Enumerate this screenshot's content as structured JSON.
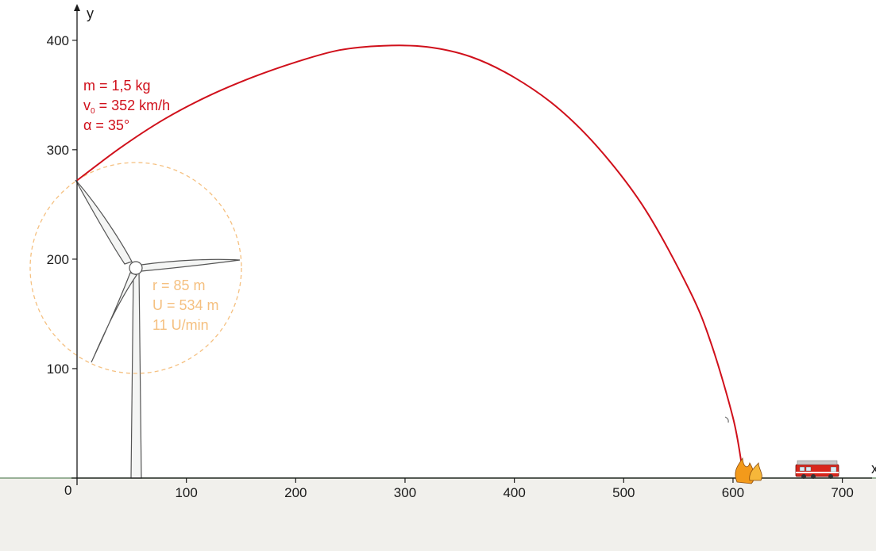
{
  "axes": {
    "x_label": "x",
    "y_label": "y",
    "origin_label": "0",
    "x_ticks": [
      "100",
      "200",
      "300",
      "400",
      "500",
      "600",
      "700"
    ],
    "y_ticks": [
      "100",
      "200",
      "300",
      "400"
    ]
  },
  "projectile": {
    "mass": "m = 1,5 kg",
    "speed_symbol": "v",
    "speed_subscript": "0",
    "speed_value": " = 352 km/h",
    "angle": "α = 35°",
    "color": "#d0101b"
  },
  "rotor": {
    "radius": "r = 85 m",
    "circumference": "U = 534 m",
    "speed": "11 U/min",
    "color": "#f5c080"
  },
  "chart_data": {
    "type": "line",
    "series": [
      {
        "x": [
          0,
          40,
          80,
          120,
          160,
          200,
          240,
          280,
          320,
          360,
          400,
          440,
          480,
          520,
          560,
          580,
          600,
          608
        ],
        "y": [
          272,
          302,
          328,
          349,
          366,
          380,
          391,
          395,
          394,
          385,
          366,
          338,
          298,
          245,
          172,
          123,
          55,
          12
        ]
      }
    ],
    "xlim": [
      0,
      730
    ],
    "ylim": [
      0,
      425
    ]
  },
  "colors": {
    "ground": "#f1f0ec",
    "ground_line": "#7a9a7a",
    "axis": "#1a1a1a"
  }
}
